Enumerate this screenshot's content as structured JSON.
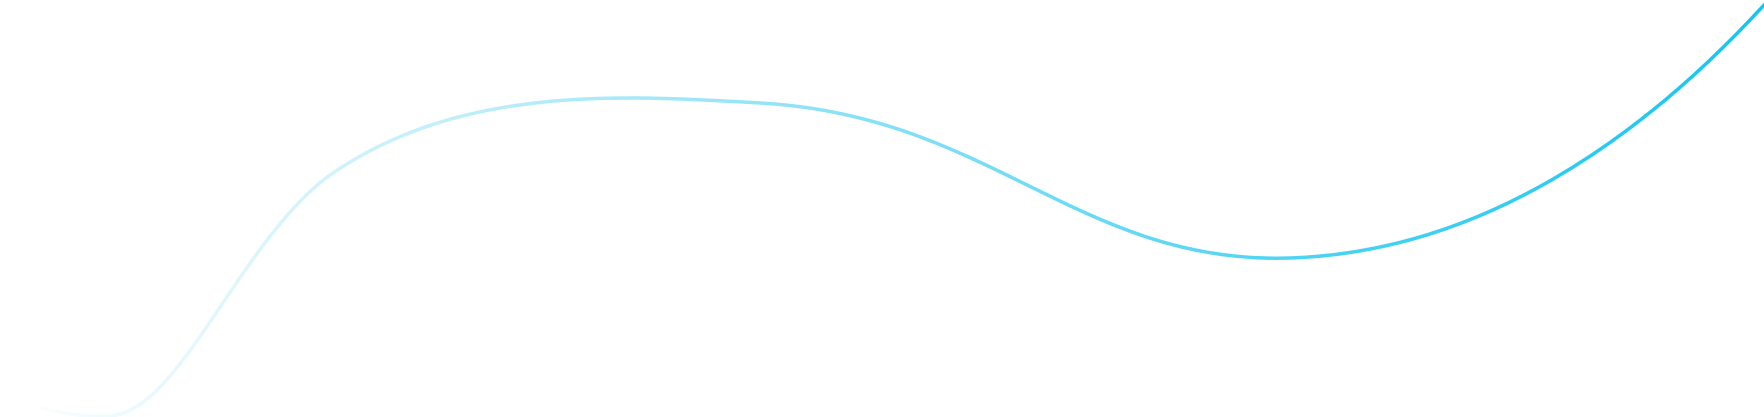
{
  "decoration": {
    "type": "wave-line",
    "colors": {
      "start": "#e6f8fd",
      "middle": "#8fe3f7",
      "end": "#12c6f0"
    }
  }
}
